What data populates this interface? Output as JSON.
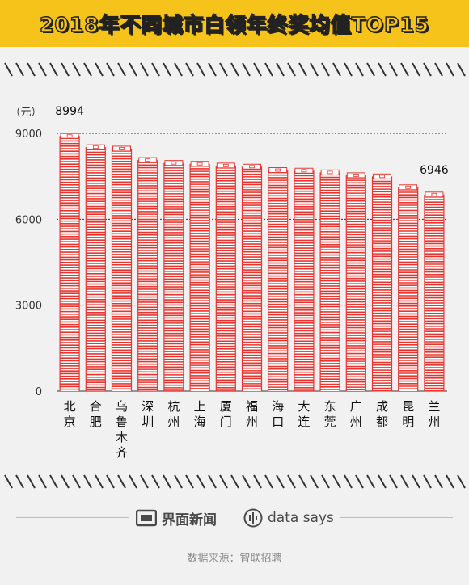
{
  "colors": {
    "accent_yellow": "#f6c31b",
    "bar_red": "#e8352f",
    "text_dark": "#222222"
  },
  "title": "2018年不同城市白领年终奖均值TOP15",
  "footer": {
    "brand_left": "界面新闻",
    "brand_right": "data says",
    "source": "数据来源：智联招聘"
  },
  "chart_data": {
    "type": "bar",
    "title": "2018年不同城市白领年终奖均值TOP15",
    "ylabel": "（元）",
    "xlabel": "",
    "ylim": [
      0,
      9000
    ],
    "yticks": [
      0,
      3000,
      6000,
      9000
    ],
    "grid": true,
    "legend": "none",
    "categories": [
      "北京",
      "合肥",
      "乌鲁木齐",
      "深圳",
      "杭州",
      "上海",
      "厦门",
      "福州",
      "海口",
      "大连",
      "东莞",
      "广州",
      "成都",
      "昆明",
      "兰州"
    ],
    "values": [
      8994,
      8600,
      8550,
      8150,
      8050,
      8020,
      7960,
      7920,
      7800,
      7780,
      7720,
      7620,
      7580,
      7200,
      6946
    ],
    "data_labels": [
      {
        "category": "北京",
        "text": "8994"
      },
      {
        "category": "兰州",
        "text": "6946"
      }
    ]
  }
}
